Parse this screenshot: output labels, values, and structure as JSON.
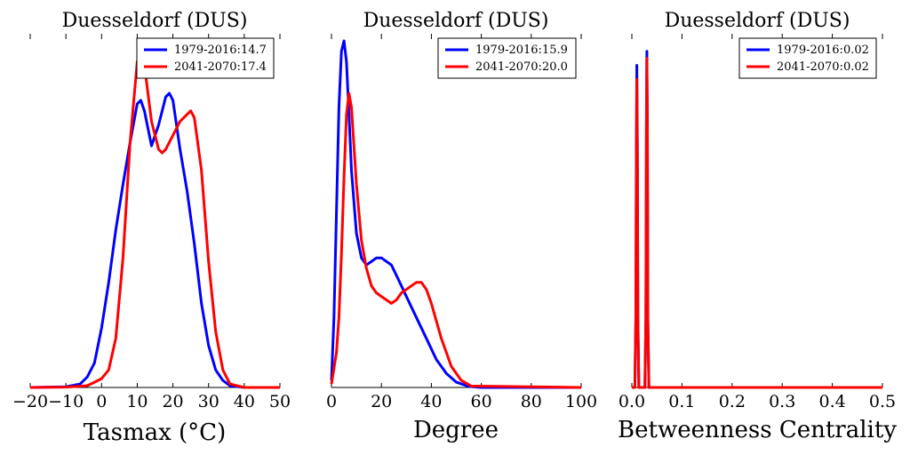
{
  "colors": {
    "series1": "#0000ff",
    "series2": "#ff0000",
    "axis": "#000000",
    "background": "#ffffff"
  },
  "chart_data": [
    {
      "type": "line",
      "title": "Duesseldorf (DUS)",
      "xlabel": "Tasmax ($^\\circ$C)",
      "xlabel_display": "Tasmax (°C)",
      "ylabel": "",
      "xlim": [
        -20,
        50
      ],
      "ylim": [
        0,
        1
      ],
      "xticks": [
        "−20",
        "−10",
        "0",
        "10",
        "20",
        "30",
        "40",
        "50"
      ],
      "xtick_values": [
        -20,
        -10,
        0,
        10,
        20,
        30,
        40,
        50
      ],
      "legend": "top-right",
      "series": [
        {
          "name": "1979-2016:14.7",
          "color": "#0000ff",
          "x": [
            -20,
            -10,
            -6,
            -4,
            -2,
            0,
            2,
            4,
            6,
            8,
            10,
            11,
            12,
            14,
            16,
            18,
            19,
            20,
            22,
            24,
            26,
            28,
            30,
            32,
            34,
            36,
            40,
            50
          ],
          "y": [
            0,
            0.002,
            0.01,
            0.03,
            0.07,
            0.17,
            0.3,
            0.45,
            0.58,
            0.7,
            0.81,
            0.82,
            0.79,
            0.69,
            0.75,
            0.83,
            0.84,
            0.82,
            0.68,
            0.56,
            0.41,
            0.24,
            0.12,
            0.05,
            0.02,
            0.005,
            0,
            0
          ]
        },
        {
          "name": "2041-2070:17.4",
          "color": "#ff0000",
          "x": [
            -20,
            -10,
            -4,
            -2,
            0,
            2,
            4,
            6,
            8,
            10,
            11,
            12,
            14,
            16,
            17,
            18,
            20,
            22,
            24,
            25,
            26,
            28,
            30,
            32,
            34,
            36,
            40,
            50
          ],
          "y": [
            0,
            0.001,
            0.005,
            0.015,
            0.025,
            0.05,
            0.14,
            0.37,
            0.7,
            0.93,
            0.96,
            0.92,
            0.76,
            0.68,
            0.67,
            0.68,
            0.72,
            0.76,
            0.78,
            0.79,
            0.77,
            0.62,
            0.36,
            0.16,
            0.05,
            0.01,
            0,
            0
          ]
        }
      ]
    },
    {
      "type": "line",
      "title": "Duesseldorf (DUS)",
      "xlabel": "Degree",
      "ylabel": "",
      "xlim": [
        0,
        100
      ],
      "ylim": [
        0,
        1
      ],
      "xticks": [
        "0",
        "20",
        "40",
        "60",
        "80",
        "100"
      ],
      "xtick_values": [
        0,
        20,
        40,
        60,
        80,
        100
      ],
      "legend": "top-right",
      "series": [
        {
          "name": "1979-2016:15.9",
          "color": "#0000ff",
          "x": [
            0,
            1,
            2,
            3,
            4,
            5,
            6,
            7,
            8,
            10,
            12,
            14,
            16,
            18,
            20,
            22,
            24,
            26,
            28,
            30,
            34,
            38,
            42,
            46,
            50,
            55,
            60,
            100
          ],
          "y": [
            0.02,
            0.2,
            0.5,
            0.8,
            0.96,
            0.99,
            0.93,
            0.78,
            0.62,
            0.44,
            0.37,
            0.35,
            0.36,
            0.37,
            0.37,
            0.36,
            0.35,
            0.32,
            0.29,
            0.26,
            0.2,
            0.14,
            0.08,
            0.04,
            0.015,
            0.003,
            0,
            0
          ]
        },
        {
          "name": "2041-2070:20.0",
          "color": "#ff0000",
          "x": [
            0,
            2,
            3,
            4,
            5,
            6,
            7,
            8,
            10,
            12,
            14,
            16,
            18,
            20,
            22,
            24,
            26,
            28,
            30,
            32,
            34,
            36,
            38,
            40,
            44,
            48,
            52,
            56,
            100
          ],
          "y": [
            0.01,
            0.1,
            0.2,
            0.38,
            0.6,
            0.78,
            0.84,
            0.8,
            0.58,
            0.42,
            0.34,
            0.29,
            0.27,
            0.26,
            0.25,
            0.24,
            0.25,
            0.27,
            0.28,
            0.29,
            0.3,
            0.3,
            0.28,
            0.24,
            0.14,
            0.06,
            0.02,
            0.004,
            0
          ]
        }
      ]
    },
    {
      "type": "line",
      "title": "Duesseldorf (DUS)",
      "xlabel": "Betweenness Centrality",
      "ylabel": "",
      "xlim": [
        0,
        0.5
      ],
      "ylim": [
        0,
        1
      ],
      "xticks": [
        "0.0",
        "0.1",
        "0.2",
        "0.3",
        "0.4",
        "0.5"
      ],
      "xtick_values": [
        0,
        0.1,
        0.2,
        0.3,
        0.4,
        0.5
      ],
      "legend": "top-right",
      "series": [
        {
          "name": "1979-2016:0.02",
          "color": "#0000ff",
          "x": [
            0,
            0.006,
            0.008,
            0.009,
            0.01,
            0.011,
            0.012,
            0.014,
            0.026,
            0.028,
            0.029,
            0.03,
            0.031,
            0.032,
            0.034,
            0.5
          ],
          "y": [
            0,
            0,
            0.2,
            0.7,
            0.92,
            0.7,
            0.2,
            0,
            0,
            0.2,
            0.75,
            0.96,
            0.75,
            0.2,
            0,
            0
          ]
        },
        {
          "name": "2041-2070:0.02",
          "color": "#ff0000",
          "x": [
            0,
            0.006,
            0.008,
            0.009,
            0.01,
            0.011,
            0.012,
            0.014,
            0.026,
            0.028,
            0.029,
            0.03,
            0.031,
            0.032,
            0.034,
            0.5
          ],
          "y": [
            0,
            0,
            0.2,
            0.65,
            0.88,
            0.65,
            0.2,
            0,
            0,
            0.2,
            0.72,
            0.94,
            0.72,
            0.2,
            0,
            0
          ]
        }
      ]
    }
  ]
}
